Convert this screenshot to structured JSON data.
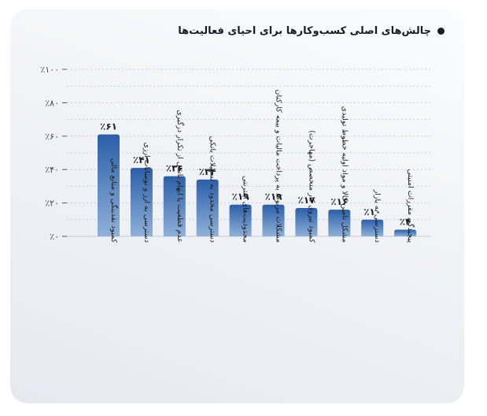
{
  "title": "چالش‌های اصلی کسب‌وکارها برای احیای فعالیت‌ها",
  "colors": {
    "bar_top": "#2b5fa8",
    "bar_bottom": "#8fb1d9",
    "grid": "#c9ccd1"
  },
  "chart_data": {
    "type": "bar",
    "title": "چالش‌های اصلی کسب‌وکارها برای احیای فعالیت‌ها",
    "xlabel": "",
    "ylabel": "",
    "ylim": [
      0,
      100
    ],
    "yticks": [
      0,
      20,
      40,
      60,
      80,
      100
    ],
    "ytick_labels": [
      "٪۰",
      "٪۲۰",
      "٪۴۰",
      "٪۶۰",
      "٪۸۰",
      "٪۱۰۰"
    ],
    "grid": true,
    "categories": [
      [
        "کمبود نقدینگی و منابع مالی"
      ],
      [
        "دسترسی به ارز و نوسانات ارزی"
      ],
      [
        "عدم قطعیت یا ابهام ناشی از تکرار درگیری"
      ],
      [
        "دسترسی محدود به تسهیلات بانکی"
      ],
      [
        "محدودیت‌های اینترنتی"
      ],
      [
        "مشکلات مربوط به پرداخت مالیات و بیمه کارکنان"
      ],
      [
        "کمبود نیروی کار متخصص (مهاجرت)"
      ],
      [
        "مشکل تامین کالا و مواد اولیه خطوط تولیدی"
      ],
      [
        "دسترسی به بازار"
      ],
      [
        "پیچیدگی مقررات امنیتی"
      ]
    ],
    "values": [
      61,
      41,
      36,
      34,
      19,
      19,
      17,
      16,
      10,
      4
    ],
    "value_labels": [
      "٪۶۱",
      "٪۴۱",
      "٪۳۶",
      "٪۳۴",
      "٪۱۹",
      "٪۱۹",
      "٪۱۷",
      "٪۱۶",
      "٪۱۰",
      "٪۴"
    ]
  }
}
